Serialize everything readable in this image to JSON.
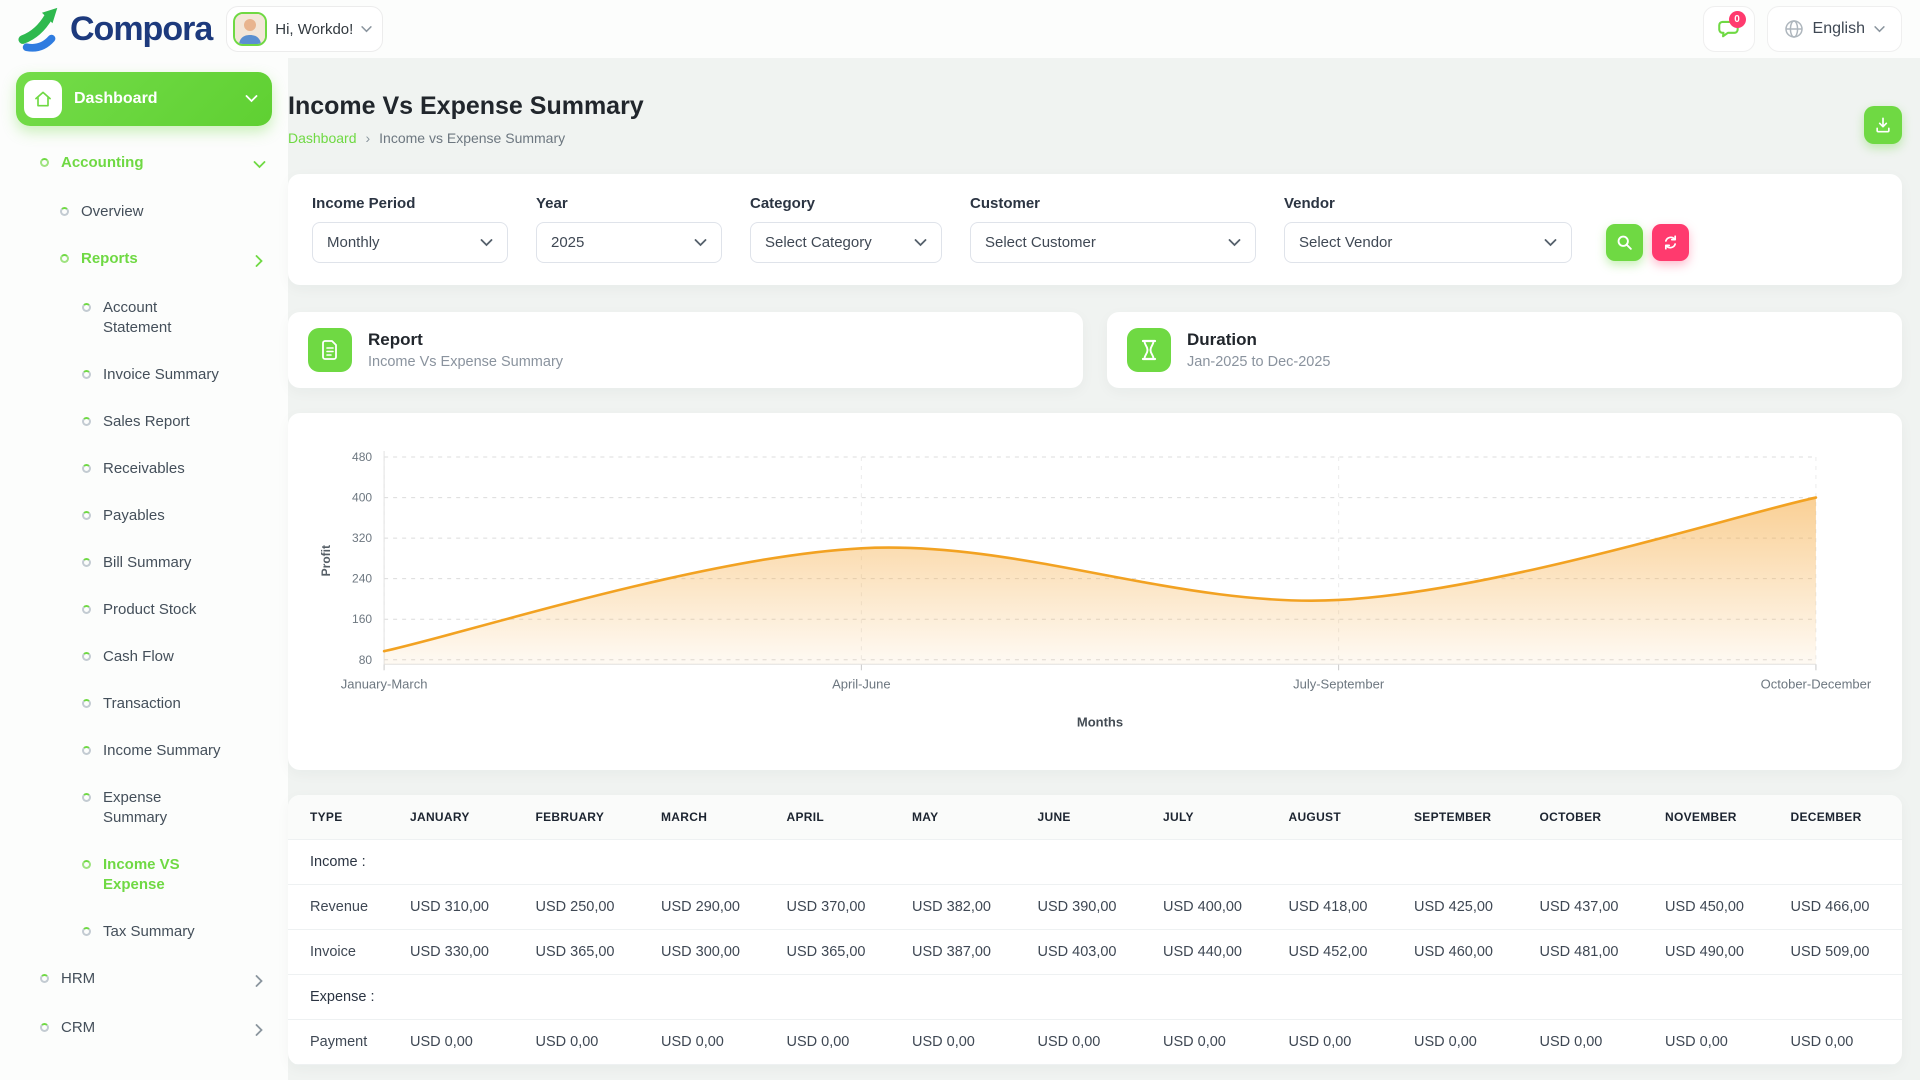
{
  "header": {
    "logo_text": "Compora",
    "greeting": "Hi, Workdo!",
    "notification_badge": "0",
    "language": "English"
  },
  "sidebar": {
    "items": [
      {
        "label": "Dashboard",
        "level": 0,
        "active": true,
        "chevron": "down",
        "icon": "home"
      },
      {
        "label": "Accounting",
        "level": 1,
        "highlight": true,
        "chevron": "down"
      },
      {
        "label": "Overview",
        "level": 2
      },
      {
        "label": "Reports",
        "level": 2,
        "highlight": true,
        "chevron": "right"
      },
      {
        "label": "Account Statement",
        "level": 3
      },
      {
        "label": "Invoice Summary",
        "level": 3
      },
      {
        "label": "Sales Report",
        "level": 3
      },
      {
        "label": "Receivables",
        "level": 3
      },
      {
        "label": "Payables",
        "level": 3
      },
      {
        "label": "Bill Summary",
        "level": 3
      },
      {
        "label": "Product Stock",
        "level": 3
      },
      {
        "label": "Cash Flow",
        "level": 3
      },
      {
        "label": "Transaction",
        "level": 3
      },
      {
        "label": "Income Summary",
        "level": 3
      },
      {
        "label": "Expense Summary",
        "level": 3
      },
      {
        "label": "Income VS Expense",
        "level": 3,
        "highlight": true
      },
      {
        "label": "Tax Summary",
        "level": 3
      },
      {
        "label": "HRM",
        "level": 1,
        "chevron": "right"
      },
      {
        "label": "CRM",
        "level": 1,
        "chevron": "right"
      }
    ]
  },
  "page": {
    "title": "Income Vs Expense Summary",
    "breadcrumb_root": "Dashboard",
    "breadcrumb_separator": "›",
    "breadcrumb_current": "Income vs Expense Summary"
  },
  "filters": {
    "income_period": {
      "label": "Income Period",
      "value": "Monthly"
    },
    "year": {
      "label": "Year",
      "value": "2025"
    },
    "category": {
      "label": "Category",
      "value": "Select Category"
    },
    "customer": {
      "label": "Customer",
      "value": "Select Customer"
    },
    "vendor": {
      "label": "Vendor",
      "value": "Select Vendor"
    }
  },
  "cards": {
    "report": {
      "title": "Report",
      "subtitle": "Income Vs Expense Summary"
    },
    "duration": {
      "title": "Duration",
      "subtitle": "Jan-2025 to Dec-2025"
    }
  },
  "chart_data": {
    "type": "area",
    "x_categories": [
      "January-March",
      "April-June",
      "July-September",
      "October-December"
    ],
    "series": [
      {
        "name": "Profit",
        "values": [
          97,
          300,
          198,
          400
        ]
      }
    ],
    "yticks": [
      80,
      160,
      240,
      320,
      400,
      480
    ],
    "ylim": [
      80,
      480
    ],
    "xlabel": "Months",
    "ylabel": "Profit",
    "grid": "dashed",
    "smooth": true,
    "legend": "none",
    "line_color": "#f2a222",
    "fill_color": "#f5a93e"
  },
  "table": {
    "columns": [
      "TYPE",
      "JANUARY",
      "FEBRUARY",
      "MARCH",
      "APRIL",
      "MAY",
      "JUNE",
      "JULY",
      "AUGUST",
      "SEPTEMBER",
      "OCTOBER",
      "NOVEMBER",
      "DECEMBER"
    ],
    "sections": [
      {
        "label": "Income :",
        "rows": [
          {
            "type": "Revenue",
            "values": [
              "USD 310,00",
              "USD 250,00",
              "USD 290,00",
              "USD 370,00",
              "USD 382,00",
              "USD 390,00",
              "USD 400,00",
              "USD 418,00",
              "USD 425,00",
              "USD 437,00",
              "USD 450,00",
              "USD 466,00"
            ]
          },
          {
            "type": "Invoice",
            "values": [
              "USD 330,00",
              "USD 365,00",
              "USD 300,00",
              "USD 365,00",
              "USD 387,00",
              "USD 403,00",
              "USD 440,00",
              "USD 452,00",
              "USD 460,00",
              "USD 481,00",
              "USD 490,00",
              "USD 509,00"
            ]
          }
        ]
      },
      {
        "label": "Expense :",
        "rows": [
          {
            "type": "Payment",
            "values": [
              "USD 0,00",
              "USD 0,00",
              "USD 0,00",
              "USD 0,00",
              "USD 0,00",
              "USD 0,00",
              "USD 0,00",
              "USD 0,00",
              "USD 0,00",
              "USD 0,00",
              "USD 0,00",
              "USD 0,00"
            ]
          }
        ]
      }
    ]
  },
  "colors": {
    "accent_green": "#6fd943",
    "accent_pink": "#ff3a6e",
    "chart_orange": "#f2a222",
    "logo_navy": "#1d3a7d"
  }
}
